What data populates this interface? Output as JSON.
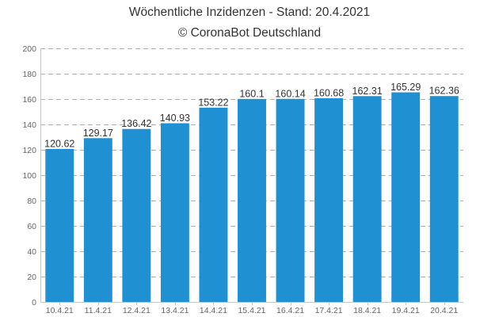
{
  "chart_data": {
    "type": "bar",
    "title": "Wöchentliche Inzidenzen - Stand: 20.4.2021",
    "subtitle": "© CoronaBot Deutschland",
    "xlabel": "",
    "ylabel": "",
    "categories": [
      "10.4.21",
      "11.4.21",
      "12.4.21",
      "13.4.21",
      "14.4.21",
      "15.4.21",
      "16.4.21",
      "17.4.21",
      "18.4.21",
      "19.4.21",
      "20.4.21"
    ],
    "values": [
      120.62,
      129.17,
      136.42,
      140.93,
      153.22,
      160.1,
      160.14,
      160.68,
      162.31,
      165.29,
      162.36
    ],
    "value_labels": [
      "120.62",
      "129.17",
      "136.42",
      "140.93",
      "153.22",
      "160.1",
      "160.14",
      "160.68",
      "162.31",
      "165.29",
      "162.36"
    ],
    "ylim": [
      0,
      200
    ],
    "yticks": [
      0,
      20,
      40,
      60,
      80,
      100,
      120,
      140,
      160,
      180,
      200
    ],
    "grid": true,
    "legend": "none",
    "bar_color": "#1f90d2"
  }
}
